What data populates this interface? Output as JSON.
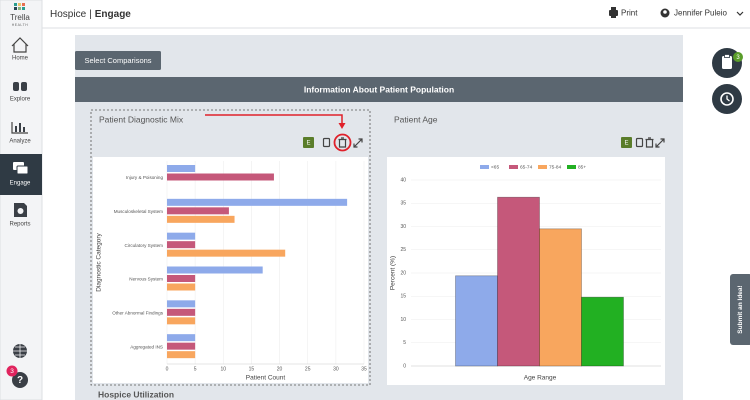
{
  "sidebar": {
    "logo": "Trella",
    "logo_sub": "HEALTH",
    "nav": [
      "Home",
      "Explore",
      "Analyze",
      "Engage",
      "Reports"
    ],
    "help_badge": 3
  },
  "header": {
    "product": "Hospice",
    "separator": "|",
    "page": "Engage",
    "print": "Print",
    "user": "Jennifer Puleio"
  },
  "select_comparisons": "Select Comparisons",
  "section_title": "Information About Patient Population",
  "panel_buttons": {
    "export": "E"
  },
  "chart_data": [
    {
      "type": "bar",
      "orientation": "horizontal",
      "title": "Patient Diagnostic Mix",
      "categories": [
        "Injury & Poisoning",
        "Musculoskeletal System",
        "Circulatory System",
        "Nervous System",
        "Other Abnormal Findings",
        "Aggregated INS"
      ],
      "series": [
        {
          "color": "#8eaaea",
          "values": [
            5,
            32,
            5,
            17,
            5,
            5
          ]
        },
        {
          "color": "#c5587a",
          "values": [
            19,
            11,
            5,
            5,
            5,
            5
          ]
        },
        {
          "color": "#f8a65e",
          "values": [
            null,
            12,
            21,
            5,
            5,
            5
          ]
        }
      ],
      "xlim": [
        0,
        35
      ],
      "xticks": [
        0,
        5,
        10,
        15,
        20,
        25,
        30,
        35
      ],
      "xlabel": "Patient Count",
      "ylabel": "Diagnostic Category",
      "grid": true
    },
    {
      "type": "bar",
      "orientation": "vertical",
      "title": "Patient Age",
      "categories": [
        null
      ],
      "series": [
        {
          "name": "<65",
          "color": "#8eaaea",
          "values": [
            19.4
          ]
        },
        {
          "name": "65-74",
          "color": "#c5587a",
          "values": [
            36.3
          ]
        },
        {
          "name": "75-84",
          "color": "#f8a65e",
          "values": [
            29.5
          ]
        },
        {
          "name": "85+",
          "color": "#22b022",
          "values": [
            14.8
          ]
        }
      ],
      "ylim": [
        0,
        40
      ],
      "yticks": [
        0,
        5,
        10,
        15,
        20,
        25,
        30,
        35,
        40
      ],
      "xlabel": "Age Range",
      "ylabel": "Percent (%)",
      "legend": "top",
      "grid": true
    }
  ],
  "float_badge": 3,
  "submit_idea": "Submit an Idea!",
  "next_section": "Hospice Utilization"
}
